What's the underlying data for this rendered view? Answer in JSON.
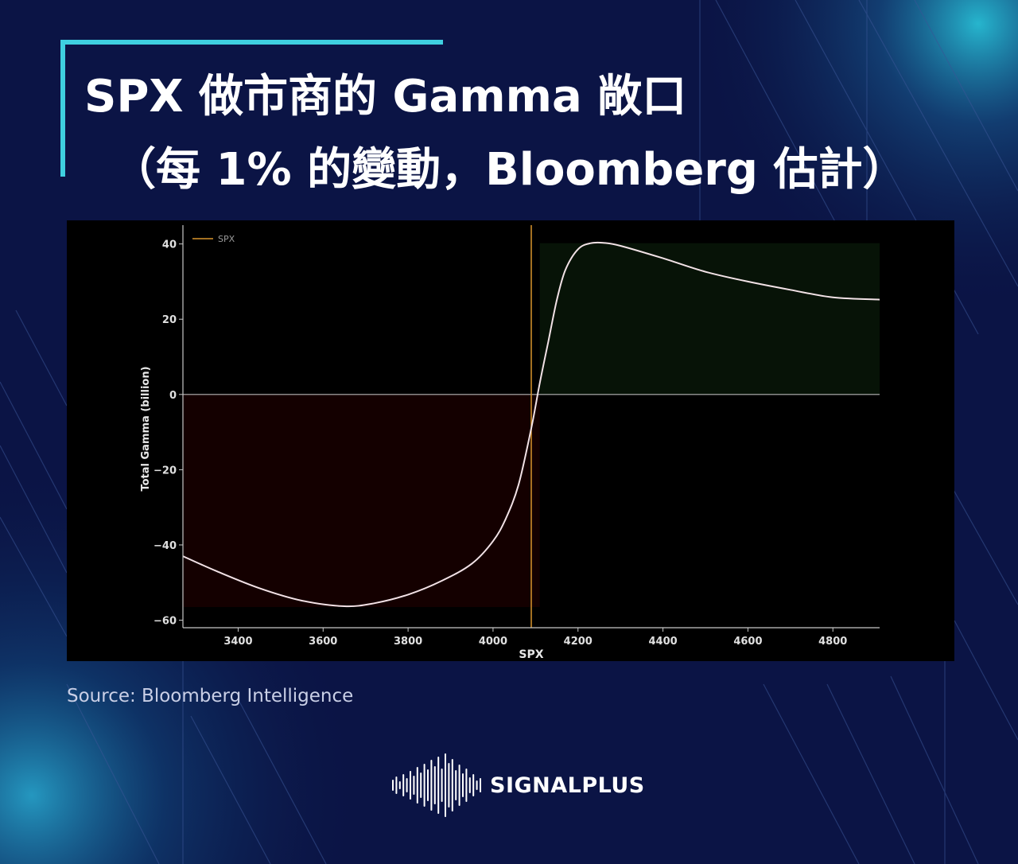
{
  "title": {
    "line1": "SPX 做市商的 Gamma 敞口",
    "line2": "（每 1% 的變動，Bloomberg 估計）"
  },
  "source": "Source: Bloomberg Intelligence",
  "brand": {
    "name": "SIGNALPLUS"
  },
  "colors": {
    "background": "#0b1445",
    "accent": "#3fd0e0",
    "line": "#f2e2e6",
    "negative_fill": "#140000",
    "positive_fill": "#071307",
    "flip_line": "#d9952c"
  },
  "chart_data": {
    "type": "line",
    "xlabel": "SPX",
    "ylabel": "Total Gamma (billion)",
    "xlim": [
      3270,
      4910
    ],
    "ylim": [
      -62,
      45
    ],
    "xticks": [
      3400,
      3600,
      3800,
      4000,
      4200,
      4400,
      4600,
      4800
    ],
    "yticks": [
      -60,
      -40,
      -20,
      0,
      20,
      40
    ],
    "legend": {
      "position": "top-left",
      "label": "SPX"
    },
    "zero_gamma_level": 4090,
    "series": [
      {
        "name": "SPX",
        "x": [
          3270,
          3350,
          3450,
          3550,
          3650,
          3720,
          3800,
          3880,
          3950,
          4000,
          4030,
          4060,
          4090,
          4110,
          4130,
          4150,
          4170,
          4200,
          4230,
          4260,
          4300,
          4400,
          4500,
          4600,
          4700,
          4800,
          4910
        ],
        "y": [
          -43,
          -47,
          -51.5,
          -54.8,
          -56.3,
          -55.5,
          -53.2,
          -49.5,
          -45,
          -39,
          -33,
          -24,
          -9,
          3,
          14,
          25,
          33,
          38.6,
          40.2,
          40.3,
          39.5,
          36.2,
          32.6,
          30,
          27.8,
          25.8,
          25.2
        ]
      }
    ],
    "regions": [
      {
        "label": "negative",
        "x": [
          3270,
          4110
        ],
        "y": [
          -56.5,
          0
        ]
      },
      {
        "label": "positive",
        "x": [
          4110,
          4910
        ],
        "y": [
          0,
          40.2
        ]
      }
    ]
  }
}
